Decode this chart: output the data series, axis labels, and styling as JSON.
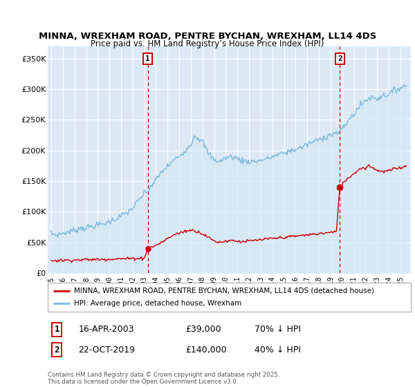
{
  "title": "MINNA, WREXHAM ROAD, PENTRE BYCHAN, WREXHAM, LL14 4DS",
  "subtitle": "Price paid vs. HM Land Registry’s House Price Index (HPI)",
  "hpi_color": "#7ab8d9",
  "hpi_fill": "#d6e8f5",
  "price_color": "#cc0000",
  "vline_color": "#cc0000",
  "background_color": "#dce9f5",
  "ylim": [
    0,
    370000
  ],
  "yticks": [
    0,
    50000,
    100000,
    150000,
    200000,
    250000,
    300000,
    350000
  ],
  "legend_label_red": "MINNA, WREXHAM ROAD, PENTRE BYCHAN, WREXHAM, LL14 4DS (detached house)",
  "legend_label_blue": "HPI: Average price, detached house, Wrexham",
  "annotation1": {
    "num": "1",
    "date": "16-APR-2003",
    "price": "£39,000",
    "hpi": "70% ↓ HPI"
  },
  "annotation2": {
    "num": "2",
    "date": "22-OCT-2019",
    "price": "£140,000",
    "hpi": "40% ↓ HPI"
  },
  "footer": "Contains HM Land Registry data © Crown copyright and database right 2025.\nThis data is licensed under the Open Government Licence v3.0.",
  "vline1_x": 2003.29,
  "vline2_x": 2019.8,
  "sale1_x": 2003.29,
  "sale1_y": 39000,
  "sale2_x": 2019.8,
  "sale2_y": 140000,
  "xmin": 1994.7,
  "xmax": 2025.9
}
